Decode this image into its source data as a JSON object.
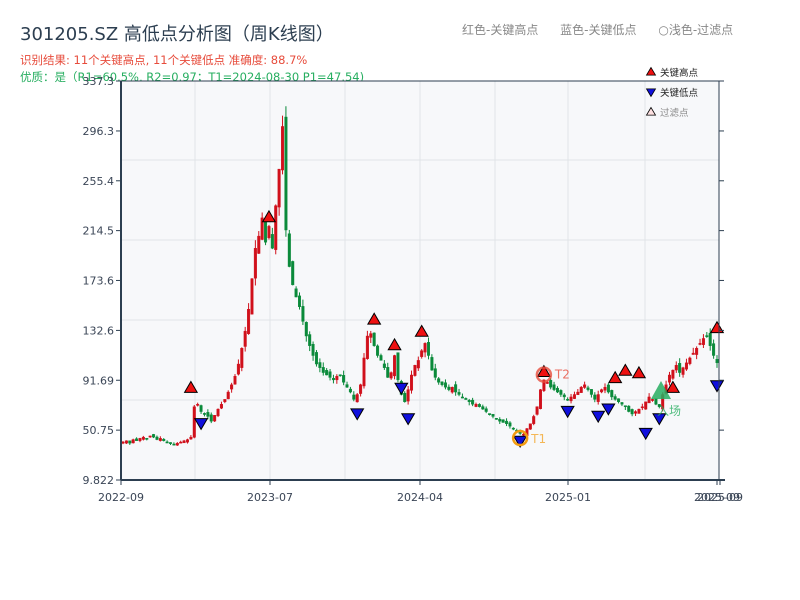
{
  "header": {
    "title": "301205.SZ 高低点分析图（周K线图）",
    "result_line": "识别结果: 11个关键高点, 11个关键低点  准确度: 88.7%",
    "quality_line": "优质：是（R1=60.5%, R2=0.97；T1=2024-08-30 P1=47.54)"
  },
  "top_legend": {
    "red": "红色-关键高点",
    "blue": "蓝色-关键低点",
    "light": "○浅色-过滤点"
  },
  "legend": {
    "high": "关键高点",
    "low": "关键低点",
    "filtered": "过滤点"
  },
  "annotations": {
    "t1": "T1",
    "t2": "T2",
    "entry": "入场"
  },
  "colors": {
    "up": "#d0101b",
    "down": "#0a8a3a",
    "high_marker": "#ee1111",
    "low_marker": "#1010dd",
    "t1_ring": "#f39c12",
    "t2_ring": "#e74c3c",
    "entry": "#27ae60",
    "plot_bg": "#f7f8fa",
    "grid": "#e1e4e8",
    "axis": "#2c3e50"
  },
  "chart_data": {
    "type": "candlestick",
    "title": "301205.SZ 高低点分析图（周K线图）",
    "xlabel": "",
    "ylabel": "",
    "ylim": [
      9.822,
      337.3
    ],
    "y_ticks": [
      "9.822",
      "50.75",
      "91.69",
      "132.6",
      "173.6",
      "214.5",
      "255.4",
      "296.3",
      "337.3"
    ],
    "y_tick_values": [
      9.822,
      50.75,
      91.69,
      132.6,
      173.6,
      214.5,
      255.4,
      296.3,
      337.3
    ],
    "x_ticks": [
      "2022-09",
      "2023-07",
      "2024-04",
      "2025-01",
      "2025-09",
      "2025-09"
    ],
    "x_tick_index": [
      0,
      39,
      78,
      117,
      155,
      156
    ],
    "grid": true,
    "legend_position": "upper right",
    "weekly_close_approx": [
      41,
      42,
      40,
      43,
      42,
      44,
      45,
      44,
      46,
      45,
      43,
      44,
      42,
      41,
      40,
      39,
      40,
      41,
      42,
      43,
      45,
      70,
      72,
      66,
      64,
      62,
      58,
      63,
      68,
      72,
      76,
      82,
      88,
      95,
      105,
      118,
      132,
      150,
      175,
      200,
      210,
      225,
      205,
      218,
      200,
      235,
      265,
      300,
      215,
      185,
      170,
      160,
      152,
      140,
      128,
      120,
      112,
      105,
      102,
      98,
      96,
      94,
      92,
      95,
      96,
      90,
      86,
      82,
      76,
      80,
      88,
      110,
      128,
      130,
      120,
      112,
      108,
      102,
      94,
      98,
      112,
      92,
      80,
      74,
      84,
      96,
      104,
      108,
      116,
      122,
      112,
      100,
      94,
      90,
      88,
      86,
      84,
      86,
      82,
      80,
      78,
      76,
      74,
      72,
      72,
      70,
      68,
      66,
      64,
      62,
      60,
      58,
      57,
      56,
      54,
      52,
      50,
      48,
      47.5,
      52,
      56,
      62,
      70,
      84,
      92,
      90,
      86,
      84,
      82,
      80,
      78,
      76,
      78,
      80,
      82,
      86,
      88,
      84,
      80,
      76,
      80,
      84,
      86,
      82,
      78,
      76,
      74,
      72,
      70,
      66,
      64,
      66,
      68,
      70,
      74,
      78,
      76,
      72,
      70,
      80,
      88,
      96,
      100,
      104,
      98,
      102,
      106,
      110,
      114,
      118,
      122,
      126,
      128,
      120,
      112,
      106
    ],
    "key_highs": [
      {
        "index": 20,
        "value": 80
      },
      {
        "index": 43,
        "value": 220
      },
      {
        "index": 74,
        "value": 136
      },
      {
        "index": 80,
        "value": 115
      },
      {
        "index": 88,
        "value": 126
      },
      {
        "index": 124,
        "value": 93
      },
      {
        "index": 145,
        "value": 88
      },
      {
        "index": 148,
        "value": 94
      },
      {
        "index": 152,
        "value": 92
      },
      {
        "index": 162,
        "value": 80
      },
      {
        "index": 177,
        "value": 129
      }
    ],
    "key_lows": [
      {
        "index": 23,
        "value": 62
      },
      {
        "index": 69,
        "value": 70
      },
      {
        "index": 82,
        "value": 91
      },
      {
        "index": 84,
        "value": 66
      },
      {
        "index": 117,
        "value": 47.54
      },
      {
        "index": 131,
        "value": 72
      },
      {
        "index": 140,
        "value": 68
      },
      {
        "index": 143,
        "value": 74
      },
      {
        "index": 154,
        "value": 54
      },
      {
        "index": 158,
        "value": 66
      },
      {
        "index": 178,
        "value": 93
      }
    ],
    "markers": {
      "T1": {
        "date": "2024-08-30",
        "price": 47.54
      },
      "T2": {
        "price": 93
      },
      "entry": {
        "price": 85
      }
    }
  }
}
